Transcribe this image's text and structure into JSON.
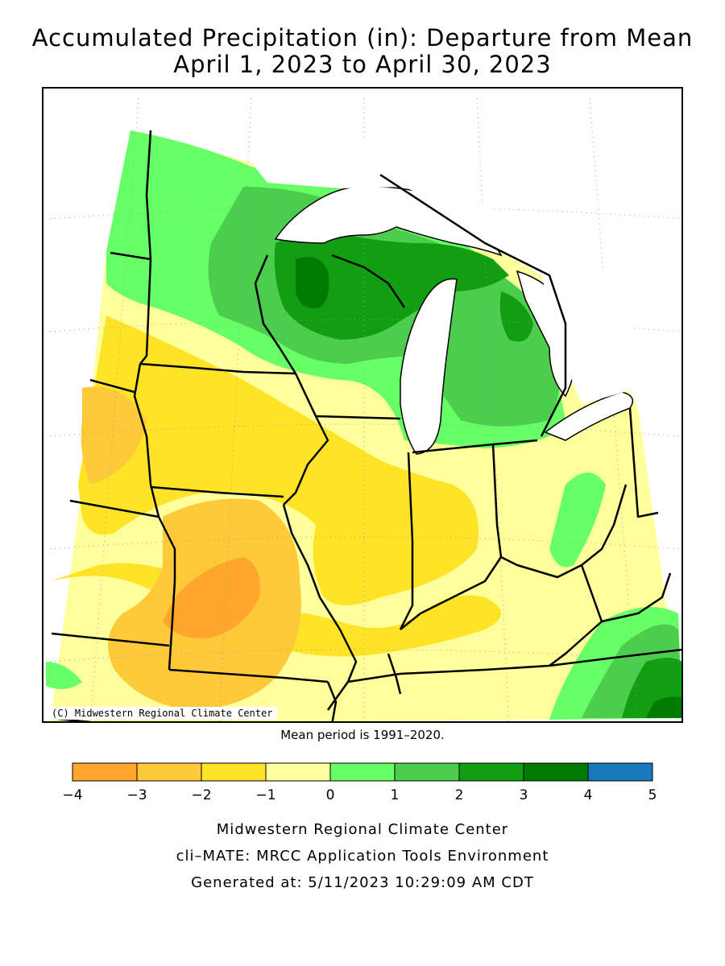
{
  "title": {
    "line1": "Accumulated Precipitation (in): Departure from Mean",
    "line2": "April 1, 2023 to April 30, 2023"
  },
  "map": {
    "copyright": "(C) Midwestern Regional Climate Center",
    "region_states": [
      "Minnesota",
      "Iowa",
      "Missouri",
      "Wisconsin",
      "Illinois",
      "Michigan",
      "Indiana",
      "Ohio",
      "Kentucky"
    ],
    "colors": {
      "water": "#ffffff",
      "border": "#000000",
      "grid": "#9a9ac0"
    }
  },
  "mean_period": "Mean period is 1991–2020.",
  "legend": {
    "bins": [
      {
        "from": -4,
        "to": -3,
        "color": "#ffa62b"
      },
      {
        "from": -3,
        "to": -2,
        "color": "#ffc93a"
      },
      {
        "from": -2,
        "to": -1,
        "color": "#ffe327"
      },
      {
        "from": -1,
        "to": 0,
        "color": "#ffff9c"
      },
      {
        "from": 0,
        "to": 1,
        "color": "#66ff66"
      },
      {
        "from": 1,
        "to": 2,
        "color": "#4dcd4d"
      },
      {
        "from": 2,
        "to": 3,
        "color": "#129e12"
      },
      {
        "from": 3,
        "to": 4,
        "color": "#007b00"
      },
      {
        "from": 4,
        "to": 5,
        "color": "#1779bb"
      }
    ],
    "tick_labels": [
      "−4",
      "−3",
      "−2",
      "−1",
      "0",
      "1",
      "2",
      "3",
      "4",
      "5"
    ]
  },
  "footer": {
    "line1": "Midwestern Regional Climate Center",
    "line2": "cli–MATE: MRCC Application Tools Environment",
    "line3": "Generated at: 5/11/2023 10:29:09 AM CDT"
  }
}
